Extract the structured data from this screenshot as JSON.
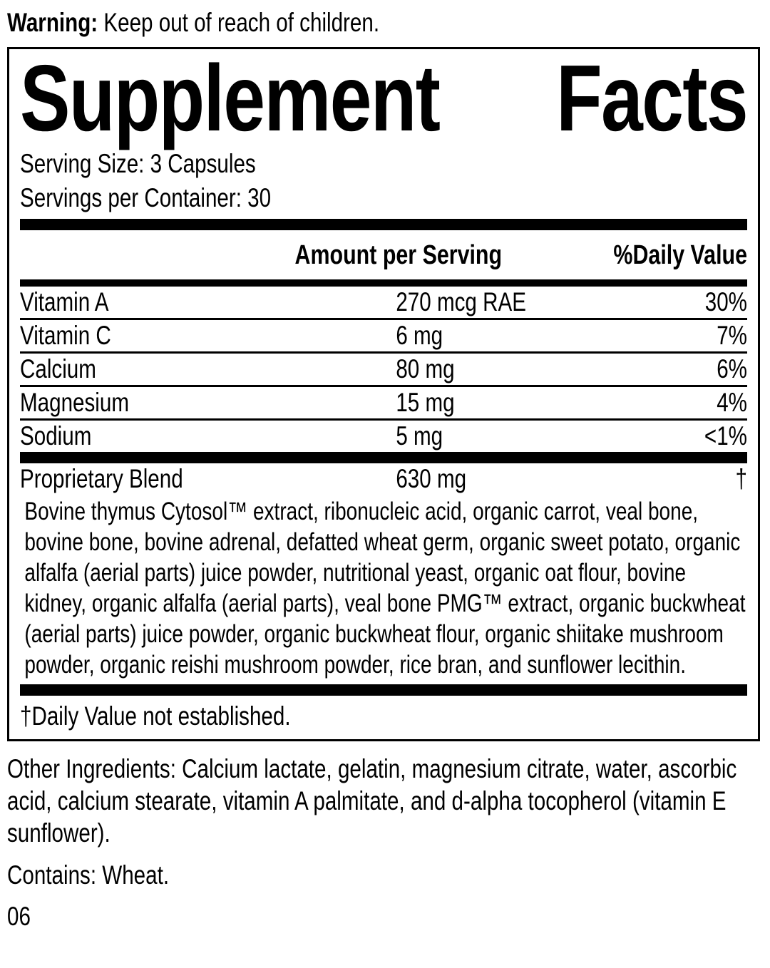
{
  "warning": {
    "label": "Warning:",
    "text": " Keep out of reach of children."
  },
  "panel": {
    "title_left": "Supplement",
    "title_right": "Facts",
    "serving_size": "Serving Size: 3 Capsules",
    "servings_per_container": "Servings per Container: 30",
    "header": {
      "amount": "Amount per Serving",
      "daily_value": "%Daily Value"
    },
    "nutrients": [
      {
        "name": "Vitamin A",
        "amount": "270 mcg RAE",
        "dv": "30%"
      },
      {
        "name": "Vitamin C",
        "amount": "6 mg",
        "dv": "7%"
      },
      {
        "name": "Calcium",
        "amount": "80 mg",
        "dv": "6%"
      },
      {
        "name": "Magnesium",
        "amount": "15 mg",
        "dv": "4%"
      },
      {
        "name": "Sodium",
        "amount": "5 mg",
        "dv": "<1%"
      }
    ],
    "blend": {
      "name": "Proprietary Blend",
      "amount": "630 mg",
      "dv": "†",
      "ingredients": "Bovine thymus Cytosol™ extract, ribonucleic acid, organic carrot, veal bone, bovine bone, bovine adrenal, defatted wheat germ, organic sweet potato, organic alfalfa (aerial parts) juice powder, nutritional yeast, organic oat flour, bovine kidney, organic alfalfa (aerial parts), veal bone PMG™ extract, organic buckwheat (aerial parts) juice powder, organic buckwheat flour, organic shiitake mushroom powder, organic reishi mushroom powder, rice bran, and sunflower lecithin."
    },
    "footnote": "†Daily Value not established."
  },
  "other_ingredients": "Other Ingredients: Calcium lactate, gelatin, magnesium citrate, water, ascorbic acid, calcium stearate, vitamin A palmitate, and d-alpha tocopherol (vitamin E sunflower).",
  "contains": "Contains: Wheat.",
  "code": "06"
}
